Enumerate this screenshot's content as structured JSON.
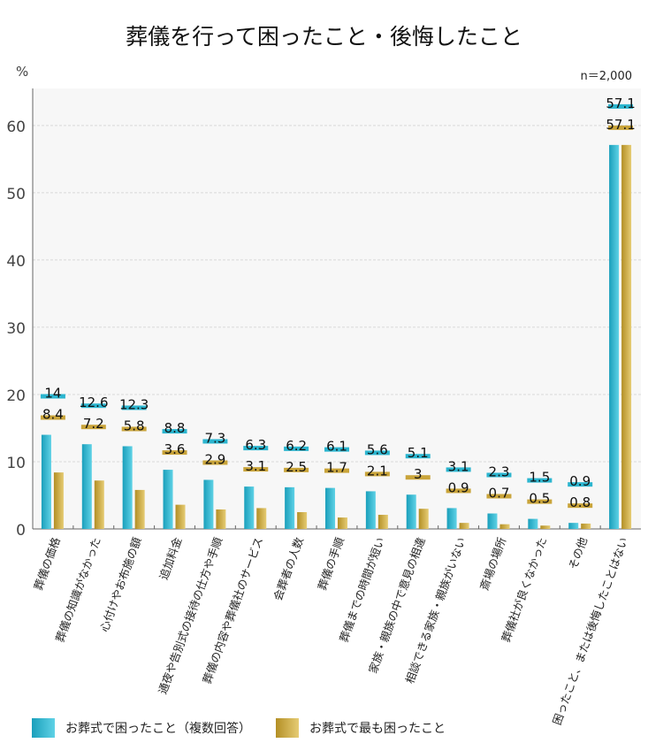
{
  "chart_data": {
    "type": "bar",
    "title": "葬儀を行って困ったこと・後悔したこと",
    "ylabel": "%",
    "note": "n＝2,000",
    "ylim": [
      0,
      65.5
    ],
    "yticks": [
      0,
      10,
      20,
      30,
      40,
      50,
      60
    ],
    "grid": true,
    "categories": [
      "葬儀の価格",
      "葬儀の知識がなかった",
      "心付けやお布施の額",
      "追加料金",
      "通夜や告別式の接待の仕方や手順",
      "葬儀の内容や葬儀社のサービス",
      "会葬者の人数",
      "葬儀の手順",
      "葬儀までの時間が短い",
      "家族・親族の中で意見の相違",
      "相談できる家族・親族がいない",
      "斎場の場所",
      "葬儀社が良くなかった",
      "その他",
      "困ったこと、または後悔したことはない"
    ],
    "series": [
      {
        "name": "お葬式で困ったこと（複数回答）",
        "color": "#2bb5cf",
        "values": [
          14,
          12.6,
          12.3,
          8.8,
          7.3,
          6.3,
          6.2,
          6.1,
          5.6,
          5.1,
          3.1,
          2.3,
          1.5,
          0.9,
          57.1
        ]
      },
      {
        "name": "お葬式で最も困ったこと",
        "color": "#c9a43a",
        "values": [
          8.4,
          7.2,
          5.8,
          3.6,
          2.9,
          3.1,
          2.5,
          1.7,
          2.1,
          3.0,
          0.9,
          0.7,
          0.5,
          0.8,
          57.1
        ]
      }
    ],
    "legend_position": "bottom"
  }
}
